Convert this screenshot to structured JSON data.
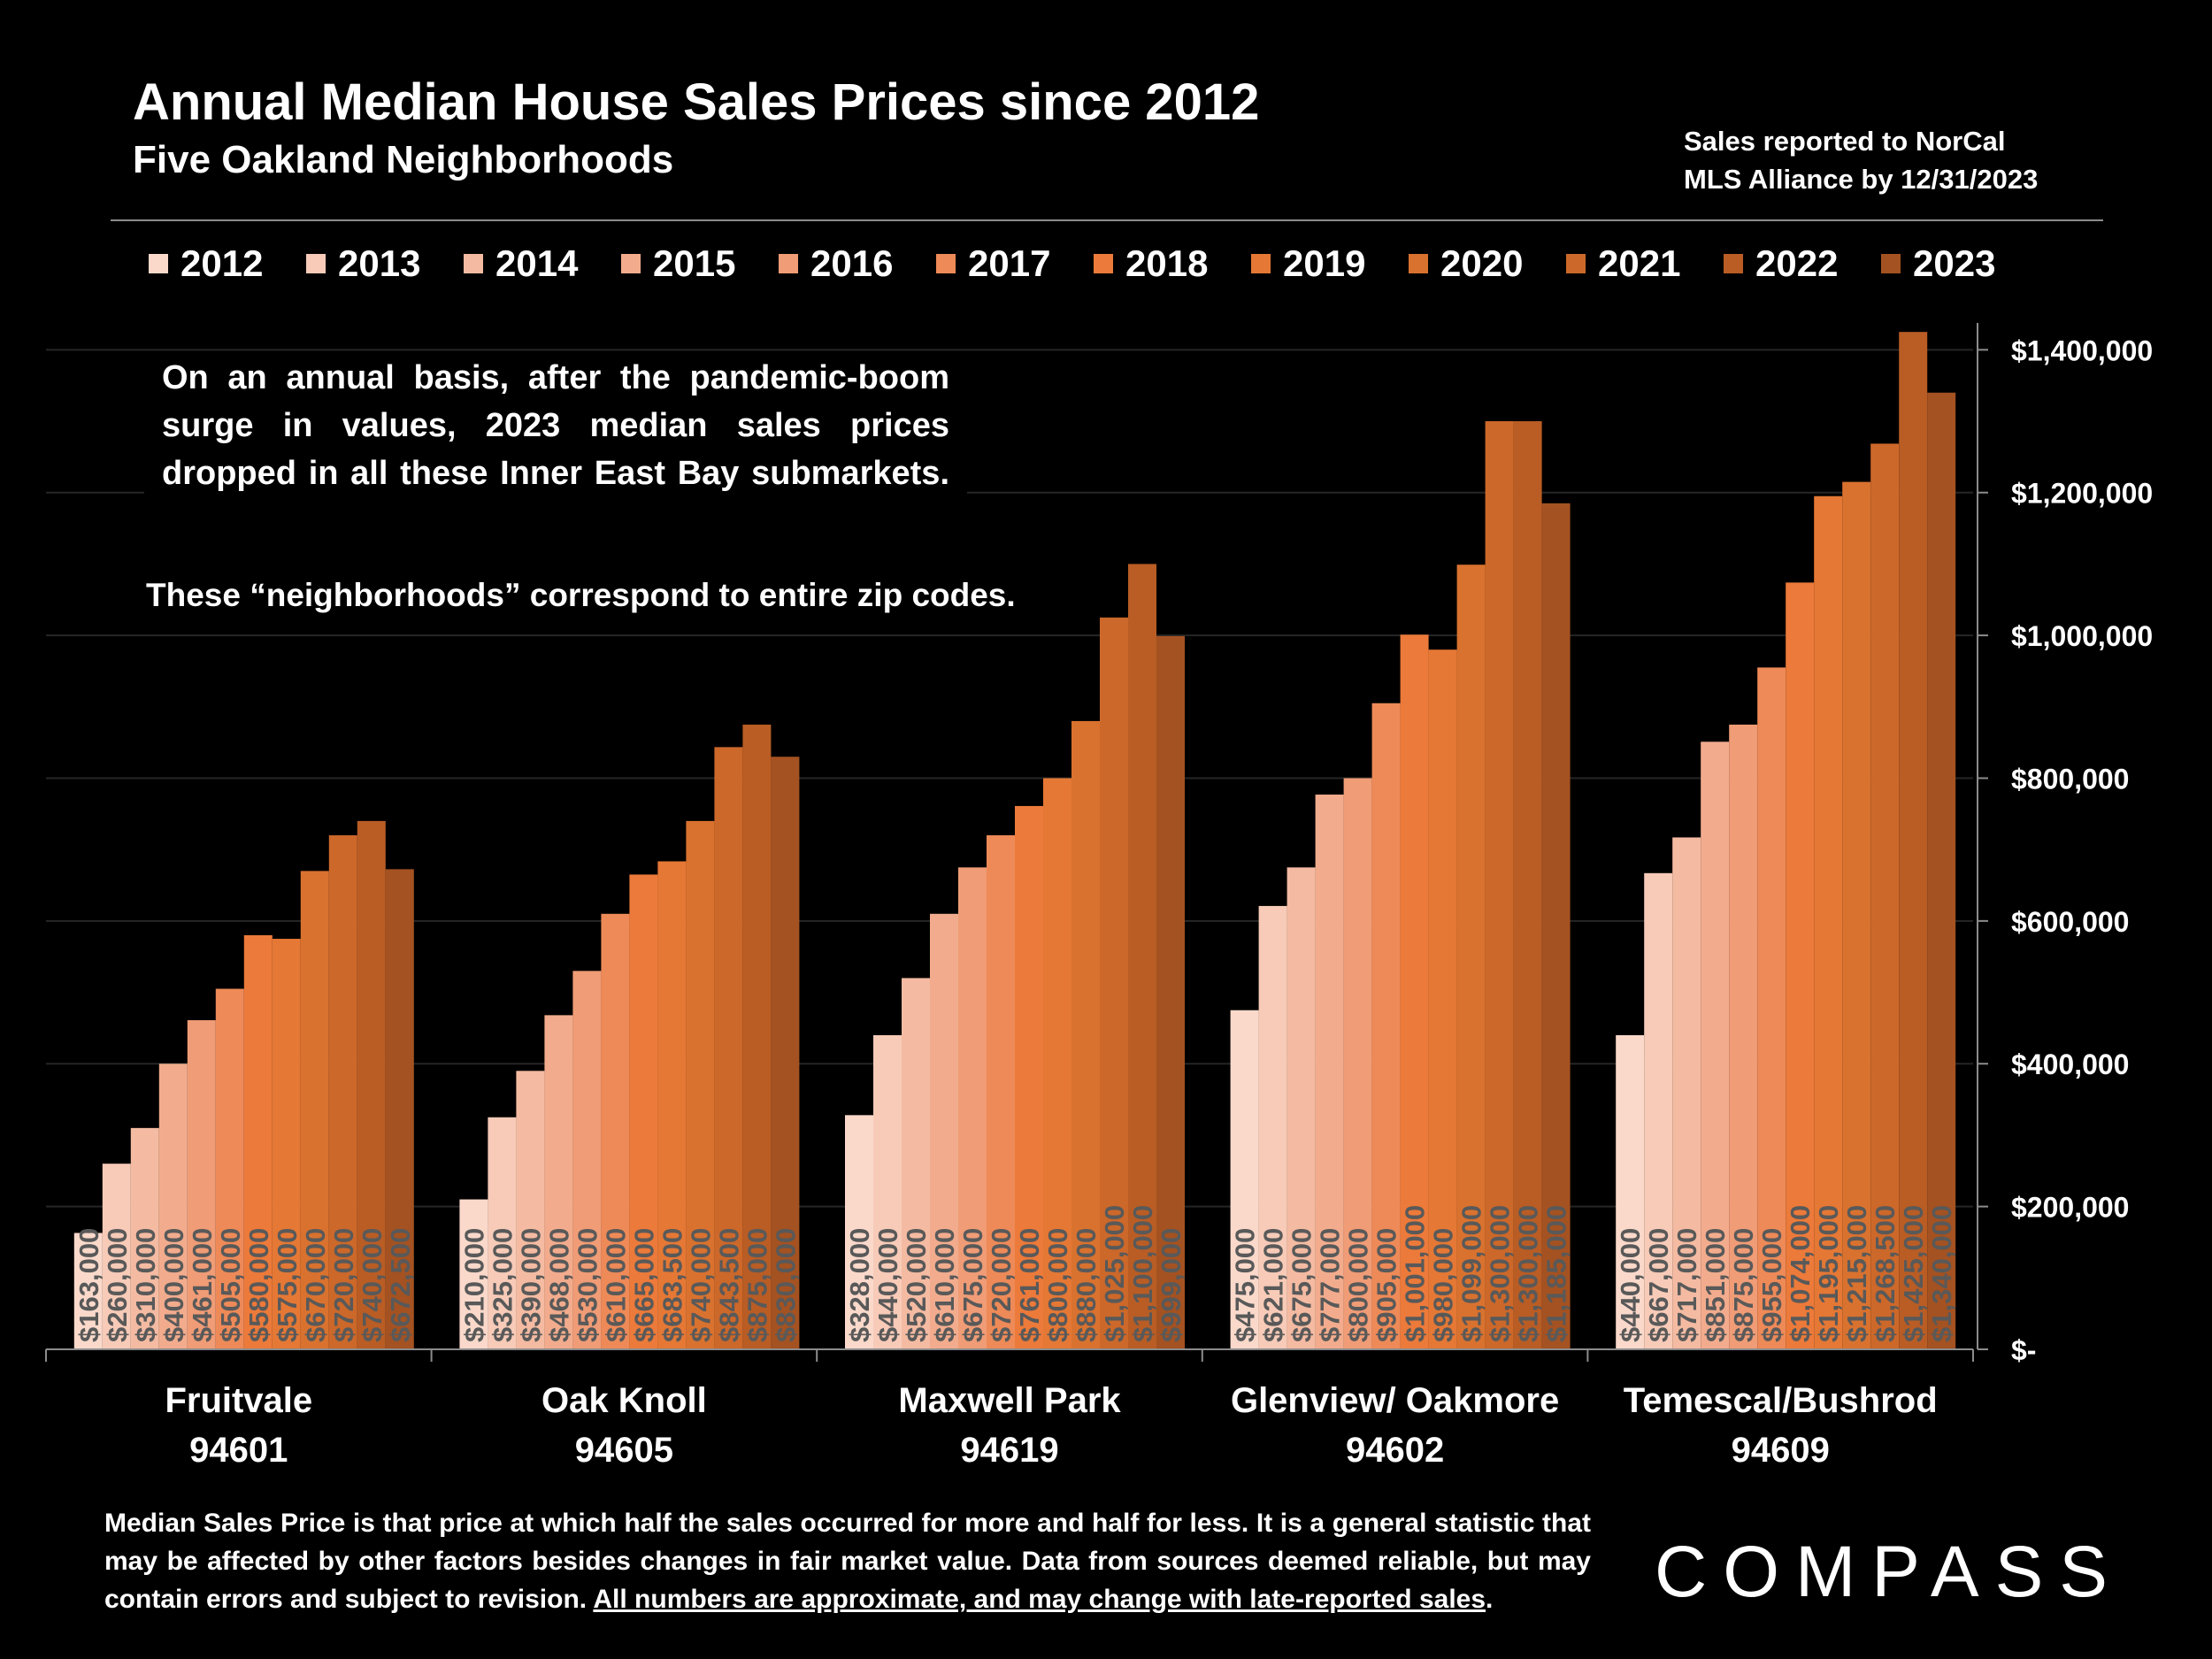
{
  "header": {
    "title": "Annual Median House Sales Prices since 2012",
    "subtitle": "Five Oakland Neighborhoods",
    "source_line1": "Sales reported to NorCal",
    "source_line2": "MLS Alliance by 12/31/2023"
  },
  "notes": {
    "note1": "On an annual basis, after the pandemic-boom surge in values, 2023 median sales prices dropped in all these Inner East Bay submarkets.",
    "note2": "These “neighborhoods” correspond to entire zip codes."
  },
  "footnote": {
    "text": "Median Sales Price is that price at which half the sales occurred for more and half for less. It is a general statistic that may be affected by other factors besides changes in fair market value. Data from sources deemed reliable, but may contain errors and subject to revision.",
    "underlined": "All numbers are approximate, and may change with late-reported sales",
    "end": "."
  },
  "logo": {
    "text": "COMPASS"
  },
  "chart_data": {
    "type": "bar",
    "categories": [
      {
        "name": "Fruitvale",
        "zip": "94601"
      },
      {
        "name": "Oak Knoll",
        "zip": "94605"
      },
      {
        "name": "Maxwell Park",
        "zip": "94619"
      },
      {
        "name": "Glenview/ Oakmore",
        "zip": "94602"
      },
      {
        "name": "Temescal/Bushrod",
        "zip": "94609"
      }
    ],
    "series": [
      {
        "name": "2012",
        "color": "#fad9cb",
        "values": [
          163000,
          210000,
          328000,
          475000,
          440000
        ],
        "labels": [
          "$163,000",
          "$210,000",
          "$328,000",
          "$475,000",
          "$440,000"
        ]
      },
      {
        "name": "2013",
        "color": "#f7cbb8",
        "values": [
          260000,
          325000,
          440000,
          621000,
          667000
        ],
        "labels": [
          "$260,000",
          "$325,000",
          "$440,000",
          "$621,000",
          "$667,000"
        ]
      },
      {
        "name": "2014",
        "color": "#f4bba2",
        "values": [
          310000,
          390000,
          520000,
          675000,
          717000
        ],
        "labels": [
          "$310,000",
          "$390,000",
          "$520,000",
          "$675,000",
          "$717,000"
        ]
      },
      {
        "name": "2015",
        "color": "#f2ac8d",
        "values": [
          400000,
          468000,
          610000,
          777000,
          851000
        ],
        "labels": [
          "$400,000",
          "$468,000",
          "$610,000",
          "$777,000",
          "$851,000"
        ]
      },
      {
        "name": "2016",
        "color": "#f09c76",
        "values": [
          461000,
          530000,
          675000,
          800000,
          875000
        ],
        "labels": [
          "$461,000",
          "$530,000",
          "$675,000",
          "$800,000",
          "$875,000"
        ]
      },
      {
        "name": "2017",
        "color": "#ee8a58",
        "values": [
          505000,
          610000,
          720000,
          905000,
          955000
        ],
        "labels": [
          "$505,000",
          "$610,000",
          "$720,000",
          "$905,000",
          "$955,000"
        ]
      },
      {
        "name": "2018",
        "color": "#ec7a3a",
        "values": [
          580000,
          665000,
          761000,
          1001000,
          1074000
        ],
        "labels": [
          "$580,000",
          "$665,000",
          "$761,000",
          "$1,001,000",
          "$1,074,000"
        ]
      },
      {
        "name": "2019",
        "color": "#e57835",
        "values": [
          575000,
          683500,
          800000,
          980000,
          1195000
        ],
        "labels": [
          "$575,000",
          "$683,500",
          "$800,000",
          "$980,000",
          "$1,195,000"
        ]
      },
      {
        "name": "2020",
        "color": "#d9722f",
        "values": [
          670000,
          740000,
          880000,
          1099000,
          1215000
        ],
        "labels": [
          "$670,000",
          "$740,000",
          "$880,000",
          "$1,099,000",
          "$1,215,000"
        ]
      },
      {
        "name": "2021",
        "color": "#cc682a",
        "values": [
          720000,
          843500,
          1025000,
          1300000,
          1268500
        ],
        "labels": [
          "$720,000",
          "$843,500",
          "$1,025,000",
          "$1,300,000",
          "$1,268,500"
        ]
      },
      {
        "name": "2022",
        "color": "#b95d25",
        "values": [
          740000,
          875000,
          1100000,
          1300000,
          1425000
        ],
        "labels": [
          "$740,000",
          "$875,000",
          "$1,100,000",
          "$1,300,000",
          "$1,425,000"
        ]
      },
      {
        "name": "2023",
        "color": "#a45221",
        "values": [
          672500,
          830000,
          999000,
          1185000,
          1340000
        ],
        "labels": [
          "$672,500",
          "$830,000",
          "$999,000",
          "$1,185,000",
          "$1,340,000"
        ]
      }
    ],
    "y_axis": {
      "min": 0,
      "max": 1450000,
      "position": "right",
      "ticks": [
        0,
        200000,
        400000,
        600000,
        800000,
        1000000,
        1200000,
        1400000
      ],
      "tick_labels": [
        "$-",
        "$200,000",
        "$400,000",
        "$600,000",
        "$800,000",
        "$1,000,000",
        "$1,200,000",
        "$1,400,000"
      ]
    },
    "grid": true,
    "legend_position": "top",
    "data_label_color": "#595959"
  }
}
